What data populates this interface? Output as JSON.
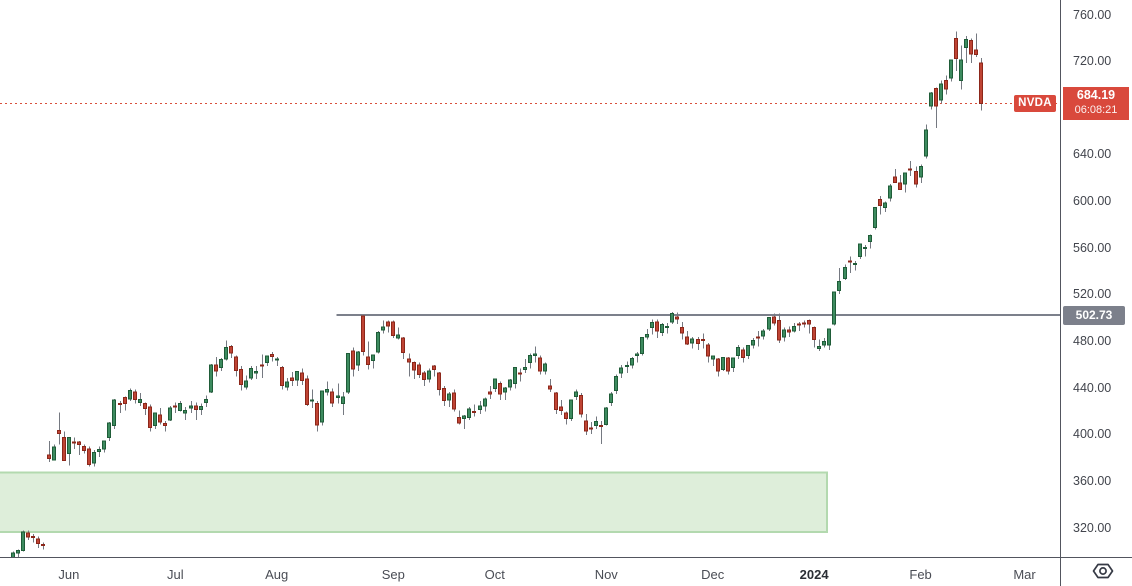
{
  "symbol": {
    "ticker": "NVDA"
  },
  "price_label": {
    "price": "684.19",
    "countdown": "06:08:21"
  },
  "line_label": "502.73",
  "price_axis_ticks": [
    {
      "value": 760,
      "label": "760.00"
    },
    {
      "value": 720,
      "label": "720.00"
    },
    {
      "value": 640,
      "label": "640.00"
    },
    {
      "value": 600,
      "label": "600.00"
    },
    {
      "value": 560,
      "label": "560.00"
    },
    {
      "value": 520,
      "label": "520.00"
    },
    {
      "value": 480,
      "label": "480.00"
    },
    {
      "value": 440,
      "label": "440.00"
    },
    {
      "value": 400,
      "label": "400.00"
    },
    {
      "value": 360,
      "label": "360.00"
    },
    {
      "value": 320,
      "label": "320.00"
    }
  ],
  "time_axis_ticks": [
    {
      "label": "Jun",
      "index": 12
    },
    {
      "label": "Jul",
      "index": 33
    },
    {
      "label": "Aug",
      "index": 53
    },
    {
      "label": "Sep",
      "index": 76
    },
    {
      "label": "Oct",
      "index": 96
    },
    {
      "label": "Nov",
      "index": 118
    },
    {
      "label": "Dec",
      "index": 139
    },
    {
      "label": "2024",
      "index": 159,
      "bold": true
    },
    {
      "label": "Feb",
      "index": 180
    },
    {
      "label": "Mar",
      "index": 200.5
    }
  ],
  "colors": {
    "up_body": "#3d8b5f",
    "up_border": "#1f5c38",
    "down_body": "#bf4434",
    "down_border": "#8c271a",
    "wick": "#757981",
    "last_price_line": "#d9503c",
    "price_flag_bg": "#d9493c",
    "level_line": "#7c808b",
    "level_label_bg": "#7c808b",
    "zone_fill": "#deeeda",
    "zone_border": "#b3d9af",
    "axis_text": "#42454d",
    "axis_border": "#52555e",
    "icon_stroke": "#363a45"
  },
  "chart_data": {
    "type": "candlestick",
    "title": "NVDA daily candlestick chart",
    "last_price": 684.19,
    "countdown": "06:08:21",
    "y_axis": {
      "visible_range": [
        295,
        773
      ],
      "tick_interval": 40,
      "ticks": [
        760,
        720,
        640,
        600,
        560,
        520,
        480,
        440,
        400,
        360,
        320
      ]
    },
    "x_axis": {
      "tick_labels": [
        "Jun",
        "Jul",
        "Aug",
        "Sep",
        "Oct",
        "Nov",
        "Dec",
        "2024",
        "Feb",
        "Mar"
      ]
    },
    "horizontal_line": {
      "price": 502.73,
      "start_index": 64.8
    },
    "zone": {
      "price_top": 368,
      "price_bottom": 317,
      "start_index": -2,
      "end_index": 161.5
    },
    "candles": [
      [
        286,
        291,
        282,
        289
      ],
      [
        290,
        300,
        288,
        299
      ],
      [
        299,
        302,
        295,
        301
      ],
      [
        301,
        318,
        300,
        316.8
      ],
      [
        316,
        318,
        310,
        312.6
      ],
      [
        313,
        315,
        308,
        312.1
      ],
      [
        311,
        313,
        303,
        306.9
      ],
      [
        306,
        308,
        302,
        305.4
      ],
      [
        383,
        395,
        377,
        379.8
      ],
      [
        378.6,
        392,
        378,
        389.5
      ],
      [
        404,
        419.4,
        392,
        401.1
      ],
      [
        398,
        403,
        378,
        378.3
      ],
      [
        384,
        398,
        373.6,
        397.7
      ],
      [
        394,
        398,
        388,
        393.3
      ],
      [
        394,
        395,
        383,
        391.8
      ],
      [
        390,
        392,
        384,
        386.5
      ],
      [
        388,
        390,
        373,
        374.5
      ],
      [
        376,
        387,
        373,
        385.1
      ],
      [
        386,
        390,
        381,
        387.7
      ],
      [
        388,
        395,
        385,
        394.7
      ],
      [
        398,
        411,
        395,
        410.2
      ],
      [
        408,
        431,
        405,
        430
      ],
      [
        427,
        429,
        419,
        426.5
      ],
      [
        432,
        432.9,
        421,
        426.9
      ],
      [
        431,
        439.9,
        429,
        438.1
      ],
      [
        437,
        439,
        427,
        430.5
      ],
      [
        428,
        436,
        425,
        430.3
      ],
      [
        427,
        428,
        417,
        422.7
      ],
      [
        424,
        426,
        403,
        406.3
      ],
      [
        408,
        419,
        405,
        418.8
      ],
      [
        417,
        423,
        409,
        411.2
      ],
      [
        410,
        412,
        403,
        408.2
      ],
      [
        413,
        425,
        412,
        423
      ],
      [
        425,
        428,
        419,
        424.1
      ],
      [
        421,
        429,
        420,
        427.1
      ],
      [
        419,
        424,
        413,
        421
      ],
      [
        423,
        429,
        419,
        425
      ],
      [
        425,
        428,
        413,
        421.8
      ],
      [
        422,
        427,
        417,
        424.3
      ],
      [
        428,
        434,
        424,
        430.4
      ],
      [
        437,
        461,
        436,
        459.8
      ],
      [
        460,
        467,
        450,
        454.7
      ],
      [
        458,
        466,
        455,
        464.6
      ],
      [
        465,
        480.9,
        464,
        474.9
      ],
      [
        476,
        477,
        466,
        470.3
      ],
      [
        467,
        468,
        450,
        455.2
      ],
      [
        456,
        459,
        438,
        443.1
      ],
      [
        441,
        451,
        439,
        446.1
      ],
      [
        449,
        459,
        447,
        456.8
      ],
      [
        453,
        459,
        448,
        454.5
      ],
      [
        460,
        469,
        449,
        459
      ],
      [
        462,
        468,
        459,
        467.5
      ],
      [
        469,
        471,
        463,
        467.3
      ],
      [
        465,
        467,
        459,
        465.1
      ],
      [
        458,
        459,
        439,
        442.4
      ],
      [
        441,
        449,
        438,
        445.2
      ],
      [
        449,
        454,
        442,
        446.6
      ],
      [
        447,
        455,
        442,
        454.2
      ],
      [
        453,
        457,
        443,
        446.6
      ],
      [
        448,
        451,
        425,
        426
      ],
      [
        430,
        439,
        423,
        430
      ],
      [
        427,
        429,
        403,
        408.6
      ],
      [
        411,
        438,
        408,
        437.5
      ],
      [
        437,
        446,
        434,
        439
      ],
      [
        437,
        440,
        424,
        427.5
      ],
      [
        432,
        444,
        427,
        433.4
      ],
      [
        427,
        437,
        417,
        432.7
      ],
      [
        437,
        470,
        435,
        469.7
      ],
      [
        472,
        475,
        450,
        456.7
      ],
      [
        460,
        472,
        455,
        471.2
      ],
      [
        502,
        502.7,
        468,
        471.6
      ],
      [
        467,
        480,
        456,
        460.2
      ],
      [
        464,
        469,
        457,
        468.4
      ],
      [
        471,
        489,
        470,
        487.8
      ],
      [
        490,
        498,
        487,
        492.6
      ],
      [
        497,
        498,
        488,
        493.6
      ],
      [
        497,
        498,
        483,
        485.1
      ],
      [
        483,
        492,
        482,
        485.5
      ],
      [
        483,
        484,
        465,
        470.6
      ],
      [
        465,
        470,
        450,
        462.4
      ],
      [
        462,
        463,
        448,
        455.7
      ],
      [
        460,
        462,
        449,
        451.8
      ],
      [
        453,
        455,
        442,
        447.5
      ],
      [
        448,
        457,
        445,
        454.9
      ],
      [
        459,
        460,
        450,
        455.9
      ],
      [
        453,
        454,
        434,
        439
      ],
      [
        440,
        442,
        425,
        429.7
      ],
      [
        430,
        437,
        424,
        435.2
      ],
      [
        436,
        439,
        420,
        422.4
      ],
      [
        415,
        421,
        409,
        410.2
      ],
      [
        414,
        417,
        405,
        416.1
      ],
      [
        415,
        424,
        413,
        422.2
      ],
      [
        420,
        426,
        416,
        419.1
      ],
      [
        422,
        429,
        418,
        424.7
      ],
      [
        425,
        432,
        420,
        430.9
      ],
      [
        437,
        442,
        431,
        434.9
      ],
      [
        440,
        448,
        437,
        447.8
      ],
      [
        444,
        446,
        430,
        435.2
      ],
      [
        437,
        441,
        430,
        440.4
      ],
      [
        441,
        448,
        438,
        446.9
      ],
      [
        444,
        458,
        440,
        457.6
      ],
      [
        453,
        457,
        446,
        452.7
      ],
      [
        456,
        465,
        453,
        458
      ],
      [
        462,
        470,
        457,
        468.1
      ],
      [
        468,
        476,
        462,
        469.5
      ],
      [
        466,
        468,
        452,
        454.6
      ],
      [
        455,
        462,
        452,
        460.9
      ],
      [
        442,
        448,
        437,
        439.4
      ],
      [
        436,
        437,
        418,
        421.9
      ],
      [
        424,
        430,
        417,
        421
      ],
      [
        419,
        420,
        409,
        413.9
      ],
      [
        414,
        430,
        412,
        429.8
      ],
      [
        433,
        439,
        430,
        436.6
      ],
      [
        434,
        436,
        415,
        417.8
      ],
      [
        412,
        418,
        400,
        403.3
      ],
      [
        406,
        411,
        401,
        405
      ],
      [
        408,
        416,
        405,
        411.6
      ],
      [
        408,
        412,
        392.3,
        407.8
      ],
      [
        409,
        424,
        408,
        423.3
      ],
      [
        428,
        437,
        425,
        435.1
      ],
      [
        438,
        452,
        435,
        450.1
      ],
      [
        453,
        460,
        449,
        457.5
      ],
      [
        459,
        463,
        453,
        459.5
      ],
      [
        460,
        467,
        457,
        465.7
      ],
      [
        468,
        471,
        462,
        469.5
      ],
      [
        470,
        484,
        468,
        483.4
      ],
      [
        484,
        491,
        482,
        486.2
      ],
      [
        492,
        499,
        486,
        496.6
      ],
      [
        497,
        499,
        483,
        488.9
      ],
      [
        488,
        496,
        485,
        494.8
      ],
      [
        493,
        496,
        487,
        493
      ],
      [
        497,
        505.5,
        495,
        504.1
      ],
      [
        501,
        505,
        495,
        499.4
      ],
      [
        492,
        497,
        482,
        487.2
      ],
      [
        484,
        489,
        477,
        477.8
      ],
      [
        479,
        484,
        474,
        482.4
      ],
      [
        482,
        484,
        473,
        478.2
      ],
      [
        482,
        487,
        474,
        481.4
      ],
      [
        477,
        479,
        462,
        467.7
      ],
      [
        465,
        468,
        459,
        467.7
      ],
      [
        465,
        466,
        450,
        455
      ],
      [
        456,
        467,
        455,
        466.3
      ],
      [
        466,
        467,
        452,
        455
      ],
      [
        458,
        466,
        454,
        466
      ],
      [
        468,
        477,
        465,
        475.1
      ],
      [
        473,
        475,
        462,
        466.3
      ],
      [
        468,
        477,
        465,
        476.6
      ],
      [
        477,
        483,
        474,
        480.9
      ],
      [
        484,
        489,
        476,
        483.5
      ],
      [
        485,
        491,
        482,
        488.9
      ],
      [
        491,
        501,
        489,
        500.8
      ],
      [
        501,
        504.3,
        494,
        496
      ],
      [
        498,
        504,
        479,
        481.4
      ],
      [
        484,
        492,
        480,
        489.9
      ],
      [
        490,
        493,
        484,
        488.3
      ],
      [
        489,
        496,
        488,
        492.8
      ],
      [
        495,
        497,
        489,
        494.2
      ],
      [
        496,
        498,
        492,
        495.2
      ],
      [
        498,
        499,
        487,
        495.2
      ],
      [
        492,
        493,
        475,
        481.7
      ],
      [
        474,
        482,
        472,
        475.7
      ],
      [
        477,
        483,
        475,
        480
      ],
      [
        477,
        491,
        473,
        491
      ],
      [
        495,
        523,
        494,
        522.5
      ],
      [
        524,
        543,
        521,
        531.4
      ],
      [
        534,
        546,
        533,
        543.5
      ],
      [
        549,
        553,
        539,
        548.2
      ],
      [
        546,
        549,
        541,
        547.1
      ],
      [
        553,
        564,
        551,
        563.8
      ],
      [
        560,
        563,
        553,
        560.5
      ],
      [
        566,
        572,
        560,
        571.1
      ],
      [
        578,
        595,
        576,
        594.9
      ],
      [
        602,
        605,
        589,
        596.5
      ],
      [
        595,
        600,
        591,
        598.7
      ],
      [
        603,
        615,
        600,
        613.6
      ],
      [
        621,
        628,
        616,
        616.2
      ],
      [
        616,
        623,
        610,
        610.3
      ],
      [
        615,
        625,
        608,
        624.7
      ],
      [
        628,
        635,
        622,
        627.7
      ],
      [
        626,
        630,
        612,
        615.3
      ],
      [
        621,
        632,
        616,
        630.3
      ],
      [
        639,
        666,
        637,
        661.6
      ],
      [
        682,
        694,
        679,
        693.3
      ],
      [
        697,
        698,
        663,
        682.2
      ],
      [
        687,
        704,
        684,
        701
      ],
      [
        704,
        708,
        692,
        696.4
      ],
      [
        706,
        722,
        703,
        721.3
      ],
      [
        740,
        746,
        712,
        722.5
      ],
      [
        704,
        734,
        696,
        721.3
      ],
      [
        732,
        742,
        719,
        739
      ],
      [
        738,
        740,
        719,
        726.6
      ],
      [
        730,
        744,
        724,
        726.1
      ],
      [
        719,
        723,
        678,
        684.19
      ]
    ]
  }
}
